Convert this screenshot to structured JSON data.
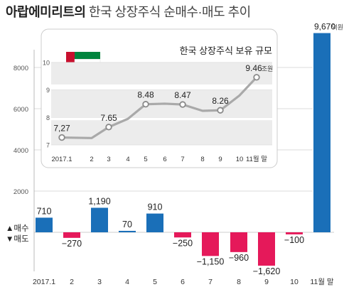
{
  "title": {
    "bold": "아랍에미리트의",
    "rest": " 한국 상장주식 순매수·매도 추이"
  },
  "legend": {
    "buy": "▲매수",
    "sell": "▼매도"
  },
  "colors": {
    "buy": "#1a6fb8",
    "sell": "#e5195a",
    "line": "#a9a9a9",
    "band": "#ececec",
    "grid": "#cfcfcf",
    "inset_bg": "#ffffff",
    "page_bg": "#ffffff"
  },
  "chart_data": [
    {
      "type": "bar",
      "categories": [
        "2017.1",
        "2",
        "3",
        "4",
        "5",
        "6",
        "7",
        "8",
        "9",
        "10",
        "11월 말"
      ],
      "values": [
        710,
        -270,
        1190,
        70,
        910,
        -250,
        -1150,
        -960,
        -1620,
        -100,
        9670
      ],
      "value_labels": [
        "710",
        "−270",
        "1,190",
        "70",
        "910",
        "−250",
        "−1,150",
        "−960",
        "−1,620",
        "−100",
        "9,670"
      ],
      "last_value_unit": "억원",
      "y_ticks": [
        2000,
        4000,
        6000,
        8000
      ],
      "y_tick_labels": [
        "2000",
        "4000",
        "6000",
        "8000"
      ],
      "ylim": [
        -2100,
        10000
      ],
      "grid": true,
      "series_colors": {
        "positive": "#1a6fb8",
        "negative": "#e5195a"
      }
    },
    {
      "type": "line",
      "title": "한국 상장주식 보유 규모",
      "categories": [
        "2017.1",
        "2",
        "3",
        "4",
        "5",
        "6",
        "7",
        "8",
        "9",
        "10",
        "11월 말"
      ],
      "values": [
        7.27,
        7.25,
        7.65,
        7.95,
        8.48,
        8.5,
        8.47,
        8.24,
        8.26,
        8.8,
        9.46
      ],
      "labeled_points": [
        {
          "index": 0,
          "label": "7,27"
        },
        {
          "index": 2,
          "label": "7.65"
        },
        {
          "index": 4,
          "label": "8.48"
        },
        {
          "index": 6,
          "label": "8.47"
        },
        {
          "index": 8,
          "label": "8.26"
        },
        {
          "index": 10,
          "label": "9.46",
          "unit": "조원"
        }
      ],
      "y_ticks": [
        7,
        8,
        9,
        10
      ],
      "y_tick_labels": [
        "7",
        "8",
        "9",
        "10"
      ],
      "ylim": [
        7,
        10
      ],
      "grid": true,
      "legend": "none"
    }
  ]
}
